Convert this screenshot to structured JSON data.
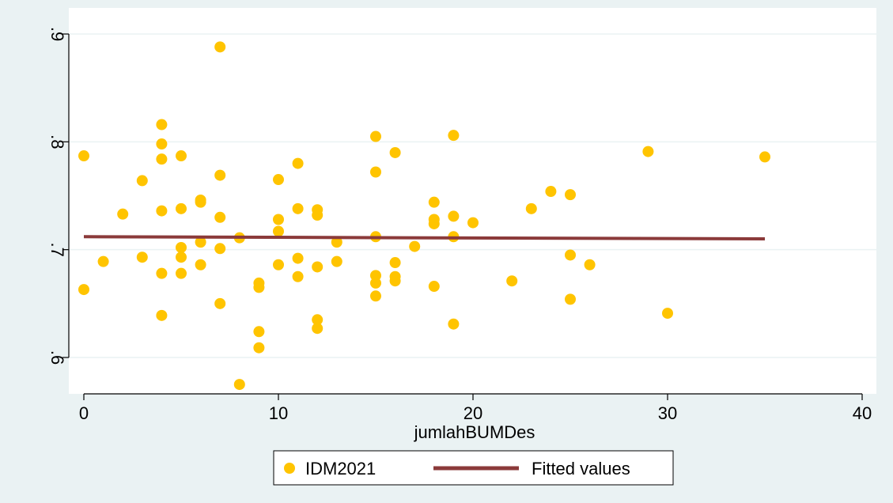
{
  "colors": {
    "outer_background": "#eaf2f3",
    "plot_background": "#ffffff",
    "gridline": "#eaf2f3",
    "scatter_fill": "#ffc400",
    "fitted_line": "#8b3a3a",
    "axis": "#000000"
  },
  "chart_data": {
    "type": "scatter",
    "title": "",
    "xlabel": "jumlahBUMDes",
    "ylabel": "",
    "xlim": [
      0,
      40
    ],
    "ylim": [
      0.6,
      0.9
    ],
    "x_ticks": [
      0,
      10,
      20,
      30,
      40
    ],
    "x_tick_labels": [
      "0",
      "10",
      "20",
      "30",
      "40"
    ],
    "y_ticks": [
      0.6,
      0.7,
      0.8,
      0.9
    ],
    "y_tick_labels": [
      ".6",
      ".7",
      ".8",
      ".9"
    ],
    "grid": true,
    "legend_position": "bottom",
    "series": [
      {
        "name": "IDM2021",
        "type": "scatter",
        "points": [
          [
            0,
            0.787
          ],
          [
            0,
            0.663
          ],
          [
            1,
            0.689
          ],
          [
            2,
            0.733
          ],
          [
            3,
            0.764
          ],
          [
            3,
            0.693
          ],
          [
            4,
            0.816
          ],
          [
            4,
            0.798
          ],
          [
            4,
            0.784
          ],
          [
            4,
            0.736
          ],
          [
            4,
            0.678
          ],
          [
            4,
            0.639
          ],
          [
            5,
            0.787
          ],
          [
            5,
            0.738
          ],
          [
            5,
            0.702
          ],
          [
            5,
            0.693
          ],
          [
            5,
            0.678
          ],
          [
            6,
            0.746
          ],
          [
            6,
            0.744
          ],
          [
            6,
            0.707
          ],
          [
            6,
            0.686
          ],
          [
            7,
            0.888
          ],
          [
            7,
            0.769
          ],
          [
            7,
            0.73
          ],
          [
            7,
            0.701
          ],
          [
            7,
            0.65
          ],
          [
            8,
            0.711
          ],
          [
            8,
            0.575
          ],
          [
            9,
            0.669
          ],
          [
            9,
            0.665
          ],
          [
            9,
            0.624
          ],
          [
            9,
            0.609
          ],
          [
            10,
            0.765
          ],
          [
            10,
            0.728
          ],
          [
            10,
            0.717
          ],
          [
            10,
            0.686
          ],
          [
            11,
            0.78
          ],
          [
            11,
            0.738
          ],
          [
            11,
            0.692
          ],
          [
            11,
            0.675
          ],
          [
            12,
            0.737
          ],
          [
            12,
            0.732
          ],
          [
            12,
            0.684
          ],
          [
            12,
            0.635
          ],
          [
            12,
            0.627
          ],
          [
            13,
            0.707
          ],
          [
            13,
            0.689
          ],
          [
            15,
            0.805
          ],
          [
            15,
            0.772
          ],
          [
            15,
            0.712
          ],
          [
            15,
            0.676
          ],
          [
            15,
            0.669
          ],
          [
            15,
            0.657
          ],
          [
            16,
            0.79
          ],
          [
            16,
            0.688
          ],
          [
            16,
            0.675
          ],
          [
            16,
            0.671
          ],
          [
            17,
            0.703
          ],
          [
            18,
            0.744
          ],
          [
            18,
            0.728
          ],
          [
            18,
            0.724
          ],
          [
            18,
            0.666
          ],
          [
            19,
            0.806
          ],
          [
            19,
            0.731
          ],
          [
            19,
            0.712
          ],
          [
            19,
            0.631
          ],
          [
            20,
            0.725
          ],
          [
            22,
            0.671
          ],
          [
            23,
            0.738
          ],
          [
            24,
            0.754
          ],
          [
            25,
            0.751
          ],
          [
            25,
            0.695
          ],
          [
            25,
            0.654
          ],
          [
            26,
            0.686
          ],
          [
            29,
            0.791
          ],
          [
            30,
            0.641
          ],
          [
            35,
            0.786
          ]
        ]
      },
      {
        "name": "Fitted values",
        "type": "line",
        "points": [
          [
            0,
            0.712
          ],
          [
            35,
            0.71
          ]
        ]
      }
    ]
  }
}
